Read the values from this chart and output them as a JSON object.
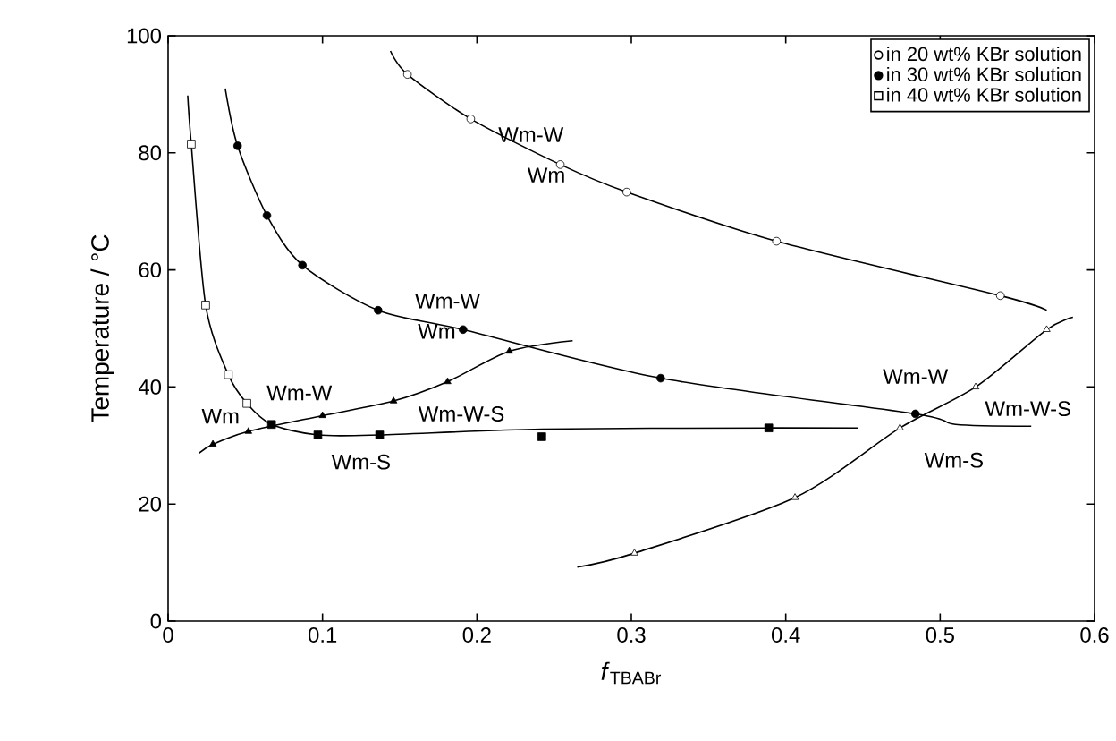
{
  "chart_data": {
    "type": "scatter",
    "xlabel": "*f*$_{TBABr}$",
    "ylabel": "Temperature / °C",
    "xlim": [
      0,
      0.6
    ],
    "ylim": [
      0,
      100
    ],
    "xticks": [
      0,
      0.1,
      0.2,
      0.3,
      0.4,
      0.5,
      0.6
    ],
    "yticks": [
      0,
      20,
      40,
      60,
      80,
      100
    ],
    "legend": "top right",
    "grid": false,
    "series": [
      {
        "type": "line",
        "marker": "none",
        "line_style": "solid",
        "color": "#000000",
        "x": [
          0.144,
          0.155,
          0.196,
          0.254,
          0.297,
          0.394,
          0.539,
          0.569
        ],
        "values": [
          97.4,
          93.4,
          85.8,
          78.0,
          73.3,
          64.9,
          55.6,
          53.1
        ]
      },
      {
        "type": "line",
        "marker": "none",
        "line_style": "solid",
        "color": "#000000",
        "x": [
          0.037,
          0.045,
          0.064,
          0.087,
          0.136,
          0.191,
          0.319,
          0.484,
          0.51,
          0.559
        ],
        "values": [
          91.0,
          81.2,
          69.3,
          60.8,
          53.1,
          49.8,
          41.5,
          35.4,
          33.6,
          33.3
        ]
      },
      {
        "type": "line",
        "marker": "none",
        "line_style": "solid",
        "color": "#000000",
        "x": [
          0.265,
          0.302,
          0.406,
          0.474,
          0.523,
          0.569,
          0.586
        ],
        "values": [
          9.2,
          11.6,
          21.1,
          33.0,
          40.0,
          49.8,
          51.9
        ]
      },
      {
        "type": "line",
        "marker": "none",
        "line_style": "solid",
        "color": "#000000",
        "x": [
          0.0127,
          0.015,
          0.0243,
          0.039,
          0.051,
          0.067,
          0.097,
          0.137,
          0.242,
          0.389,
          0.447
        ],
        "values": [
          89.8,
          81.5,
          54.0,
          42.1,
          37.2,
          33.6,
          31.8,
          31.8,
          32.8,
          33.0,
          33.0
        ]
      },
      {
        "type": "line",
        "marker": "none",
        "line_style": "solid",
        "color": "#000000",
        "x": [
          0.02,
          0.029,
          0.052,
          0.1,
          0.146,
          0.181,
          0.221,
          0.262
        ],
        "values": [
          28.7,
          30.2,
          32.4,
          35.1,
          37.6,
          40.9,
          46.1,
          47.9
        ]
      },
      {
        "name": "in 20 wt% KBr solution",
        "type": "scatter",
        "marker": "circle",
        "color": "#ffffff",
        "x": [
          0.155,
          0.196,
          0.254,
          0.297,
          0.394,
          0.539
        ],
        "values": [
          93.4,
          85.8,
          78.0,
          73.3,
          64.9,
          55.6
        ]
      },
      {
        "name": "in 30 wt% KBr solution",
        "type": "scatter",
        "marker": "circle",
        "color": "#000000",
        "x": [
          0.045,
          0.064,
          0.087,
          0.136,
          0.191,
          0.319,
          0.484
        ],
        "values": [
          81.2,
          69.3,
          60.8,
          53.1,
          49.8,
          41.5,
          35.4
        ]
      },
      {
        "type": "scatter",
        "marker": "triangle",
        "color": "#ffffff",
        "x": [
          0.302,
          0.406,
          0.474,
          0.523,
          0.569
        ],
        "values": [
          11.6,
          21.1,
          33.0,
          40.0,
          49.8
        ]
      },
      {
        "name": "in 40 wt% KBr solution",
        "type": "scatter",
        "marker": "square",
        "color": "#ffffff",
        "x": [
          0.015,
          0.0243,
          0.039,
          0.051
        ],
        "values": [
          81.5,
          54.0,
          42.1,
          37.2
        ]
      },
      {
        "type": "scatter",
        "marker": "square",
        "color": "#000000",
        "x": [
          0.067,
          0.097,
          0.137,
          0.242,
          0.389
        ],
        "values": [
          33.6,
          31.8,
          31.8,
          31.5,
          33.0
        ]
      },
      {
        "type": "scatter",
        "marker": "triangle",
        "color": "#000000",
        "x": [
          0.029,
          0.052,
          0.1,
          0.146,
          0.181,
          0.221
        ],
        "values": [
          30.2,
          32.4,
          35.1,
          37.6,
          40.9,
          46.1
        ]
      }
    ],
    "annotations": [
      "Wm-W",
      "Wm",
      "Wm-W",
      "Wm",
      "Wm-W",
      "Wm",
      "Wm-W-S",
      "Wm-S",
      "Wm-W",
      "Wm-W-S",
      "Wm-S"
    ]
  }
}
